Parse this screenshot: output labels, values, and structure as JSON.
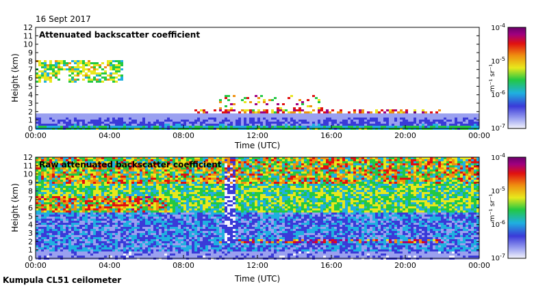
{
  "header": {
    "date": "16 Sept 2017"
  },
  "footer": {
    "instrument": "Kumpula CL51 ceilometer"
  },
  "colorbar": {
    "label": "m⁻¹ sr⁻¹",
    "ticks": [
      {
        "base": "10",
        "exp": "-4",
        "value": 0.0001
      },
      {
        "base": "10",
        "exp": "-5",
        "value": 1e-05
      },
      {
        "base": "10",
        "exp": "-6",
        "value": 1e-06
      },
      {
        "base": "10",
        "exp": "-7",
        "value": 1e-07
      }
    ],
    "colors": [
      "#f4f4fc",
      "#9aa0f0",
      "#3a3ad8",
      "#1fb0e0",
      "#23c843",
      "#e8e81c",
      "#ef9010",
      "#e01010",
      "#a00080",
      "#6a006a"
    ]
  },
  "chart_data": [
    {
      "type": "heatmap",
      "title": "Attenuated backscatter coefficient",
      "xlabel": "Time (UTC)",
      "ylabel": "Height (km)",
      "xlim": [
        "00:00",
        "24:00"
      ],
      "ylim": [
        0,
        12
      ],
      "x_ticks": [
        "00:00",
        "04:00",
        "08:00",
        "12:00",
        "16:00",
        "20:00",
        "00:00"
      ],
      "y_ticks": [
        "0",
        "1",
        "2",
        "3",
        "4",
        "5",
        "6",
        "7",
        "8",
        "9",
        "10",
        "11",
        "12"
      ],
      "color_scale": "log",
      "clim": [
        1e-07,
        0.0001
      ],
      "features": [
        {
          "feature": "boundary layer",
          "from_hour": 0,
          "to_hour": 24,
          "top_km": 1.8,
          "level": "1e-7 to 1e-6"
        },
        {
          "feature": "elevated aerosol layer",
          "from_hour": 0,
          "to_hour": 4.6,
          "bottom_km": 5.5,
          "top_km": 8.3,
          "level": "1e-6 to 1e-5"
        },
        {
          "feature": "low cloud",
          "from_hour": 8.3,
          "to_hour": 22,
          "base_km": 1.8,
          "top_km": 4,
          "level": "1e-5 to 1e-4"
        }
      ]
    },
    {
      "type": "heatmap",
      "title": "Raw attenuated backscatter coefficient",
      "xlabel": "Time (UTC)",
      "ylabel": "Height (km)",
      "xlim": [
        "00:00",
        "24:00"
      ],
      "ylim": [
        0,
        12
      ],
      "x_ticks": [
        "00:00",
        "04:00",
        "08:00",
        "12:00",
        "16:00",
        "20:00",
        "00:00"
      ],
      "y_ticks": [
        "0",
        "1",
        "2",
        "3",
        "4",
        "5",
        "6",
        "7",
        "8",
        "9",
        "10",
        "11",
        "12"
      ],
      "color_scale": "log",
      "clim": [
        1e-07,
        0.0001
      ],
      "features": [
        {
          "feature": "noisy background aloft",
          "from_hour": 0,
          "to_hour": 24,
          "bottom_km": 5.5,
          "top_km": 12,
          "level": "1e-6 to 1e-5"
        },
        {
          "feature": "noisy background low",
          "from_hour": 0,
          "to_hour": 24,
          "bottom_km": 1,
          "top_km": 5.5,
          "level": "1e-7 to 1e-6"
        },
        {
          "feature": "elevated aerosol layer",
          "from_hour": 0,
          "to_hour": 7,
          "bottom_km": 5.5,
          "top_km": 7.5,
          "level": "1e-5 to 1e-4"
        },
        {
          "feature": "low cloud",
          "from_hour": 9.9,
          "to_hour": 22,
          "base_km": 1.8,
          "top_km": 2.5,
          "level": "1e-5 to 1e-4"
        }
      ]
    }
  ]
}
